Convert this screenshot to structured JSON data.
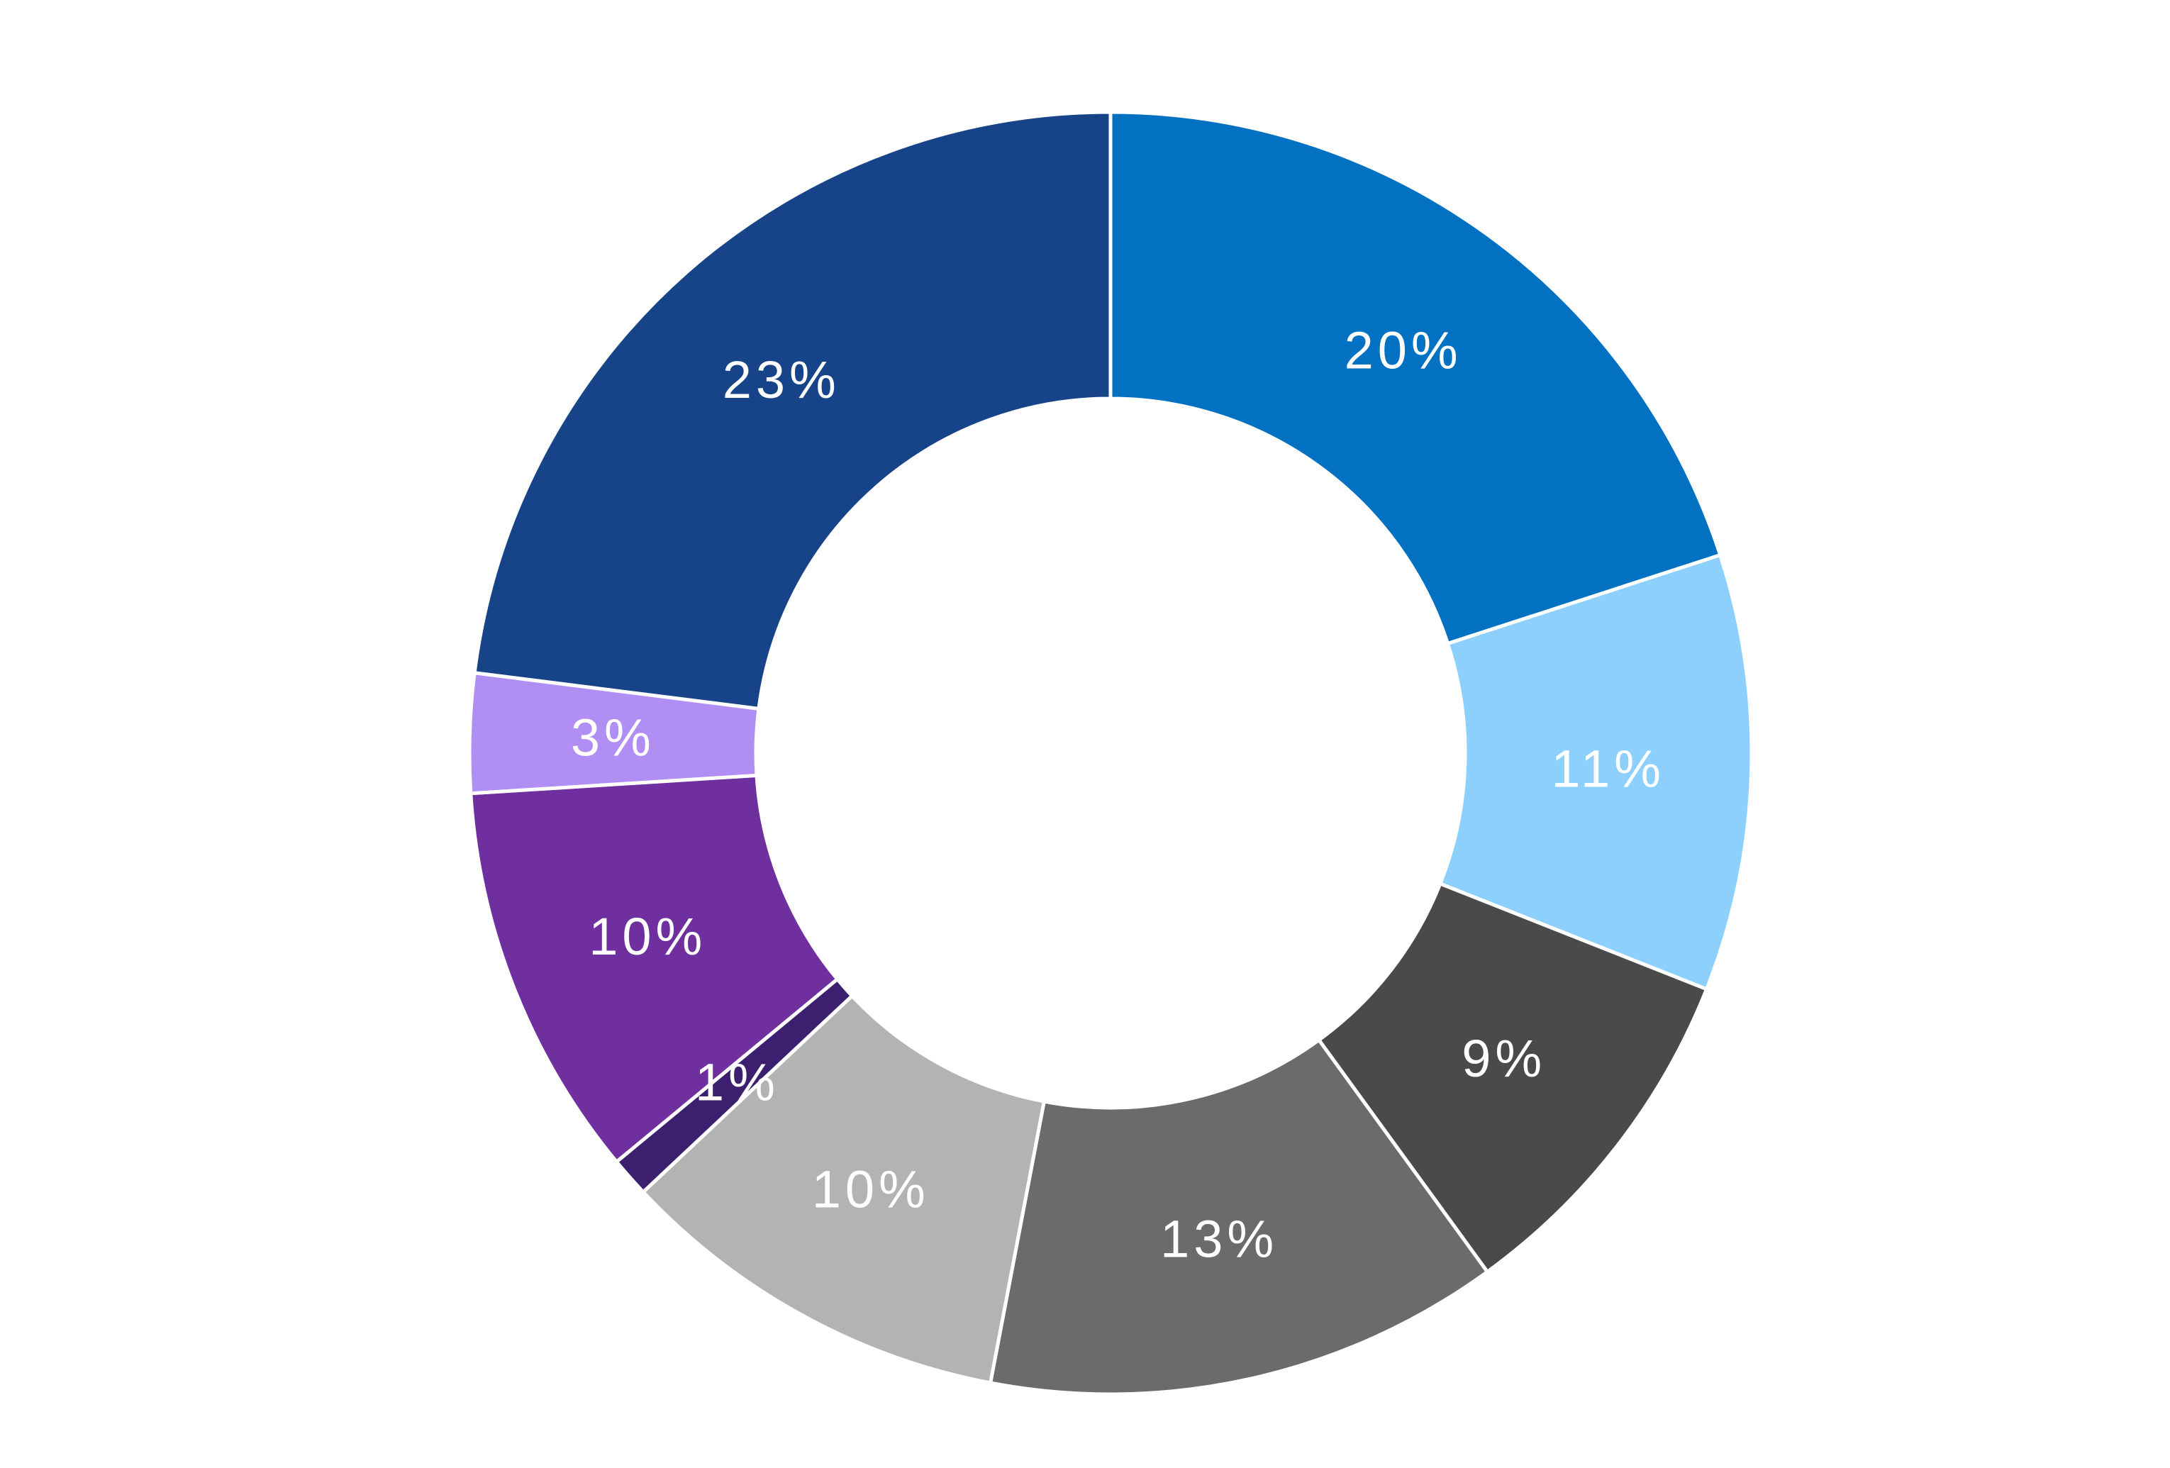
{
  "chart_data": {
    "type": "pie",
    "variant": "donut",
    "title": "",
    "slices": [
      {
        "label": "20%",
        "value": 20,
        "color": "#0271C2"
      },
      {
        "label": "11%",
        "value": 11,
        "color": "#8ED0FD"
      },
      {
        "label": "9%",
        "value": 9,
        "color": "#4A4A4A"
      },
      {
        "label": "13%",
        "value": 13,
        "color": "#6B6B6B"
      },
      {
        "label": "10%",
        "value": 10,
        "color": "#B3B3B3"
      },
      {
        "label": "1%",
        "value": 1,
        "color": "#3C1F6E"
      },
      {
        "label": "10%",
        "value": 10,
        "color": "#6F2F9F"
      },
      {
        "label": "3%",
        "value": 3,
        "color": "#B18EF3"
      },
      {
        "label": "23%",
        "value": 23,
        "color": "#174489"
      }
    ],
    "legend": "none",
    "start": "top",
    "direction": "clockwise",
    "separator_color": "#FFFFFF"
  }
}
